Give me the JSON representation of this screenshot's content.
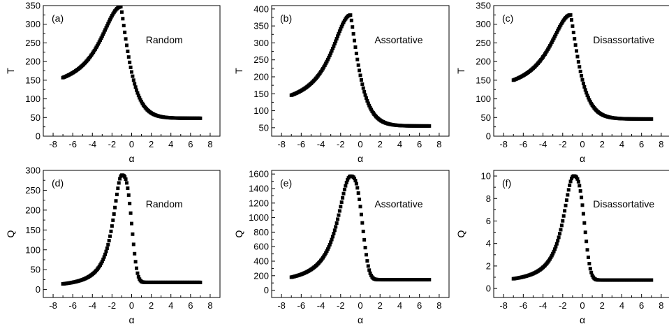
{
  "chart_data": [
    {
      "type": "scatter",
      "panel": "(a)",
      "annotation": "Random",
      "xlabel": "α",
      "ylabel": "T",
      "xlim": [
        -9,
        9
      ],
      "ylim": [
        0,
        350
      ],
      "xticks": [
        -8,
        -6,
        -4,
        -2,
        0,
        2,
        4,
        6,
        8
      ],
      "yticks": [
        0,
        50,
        100,
        150,
        200,
        250,
        300,
        350
      ],
      "grid": false,
      "curve": {
        "x_range": [
          -7,
          7
        ],
        "peak_x": -1.1,
        "peak_y": 347,
        "left_y": 120,
        "right_y": 48,
        "left_width": 2.6,
        "right_width": 0.8,
        "decay": 1.2
      }
    },
    {
      "type": "scatter",
      "panel": "(b)",
      "annotation": "Assortative",
      "xlabel": "α",
      "ylabel": "T",
      "xlim": [
        -9,
        9
      ],
      "ylim": [
        25,
        410
      ],
      "xticks": [
        -8,
        -6,
        -4,
        -2,
        0,
        2,
        4,
        6,
        8
      ],
      "yticks": [
        50,
        100,
        150,
        200,
        250,
        300,
        350,
        400
      ],
      "grid": false,
      "curve": {
        "x_range": [
          -7,
          7
        ],
        "peak_x": -1.0,
        "peak_y": 382,
        "left_y": 108,
        "right_y": 55,
        "left_width": 2.4,
        "right_width": 0.8,
        "decay": 1.2
      }
    },
    {
      "type": "scatter",
      "panel": "(c)",
      "annotation": "Disassortative",
      "xlabel": "α",
      "ylabel": "T",
      "xlim": [
        -9,
        9
      ],
      "ylim": [
        0,
        350
      ],
      "xticks": [
        -8,
        -6,
        -4,
        -2,
        0,
        2,
        4,
        6,
        8
      ],
      "yticks": [
        0,
        50,
        100,
        150,
        200,
        250,
        300,
        350
      ],
      "grid": false,
      "curve": {
        "x_range": [
          -7,
          7
        ],
        "peak_x": -1.2,
        "peak_y": 325,
        "left_y": 115,
        "right_y": 46,
        "left_width": 2.6,
        "right_width": 0.8,
        "decay": 1.2
      }
    },
    {
      "type": "scatter",
      "panel": "(d)",
      "annotation": "Random",
      "xlabel": "α",
      "ylabel": "Q",
      "xlim": [
        -9,
        9
      ],
      "ylim": [
        -20,
        300
      ],
      "xticks": [
        -8,
        -6,
        -4,
        -2,
        0,
        2,
        4,
        6,
        8
      ],
      "yticks": [
        0,
        50,
        100,
        150,
        200,
        250,
        300
      ],
      "grid": false,
      "curve": {
        "x_range": [
          -7,
          7
        ],
        "peak_x": -1.0,
        "peak_y": 288,
        "left_y": 5,
        "right_y": 18,
        "left_width": 1.1,
        "right_width": 1.0,
        "decay": 3.0
      }
    },
    {
      "type": "scatter",
      "panel": "(e)",
      "annotation": "Assortative",
      "xlabel": "α",
      "ylabel": "Q",
      "xlim": [
        -9,
        9
      ],
      "ylim": [
        -100,
        1650
      ],
      "xticks": [
        -8,
        -6,
        -4,
        -2,
        0,
        2,
        4,
        6,
        8
      ],
      "yticks": [
        0,
        200,
        400,
        600,
        800,
        1000,
        1200,
        1400,
        1600
      ],
      "grid": false,
      "curve": {
        "x_range": [
          -7,
          7
        ],
        "peak_x": -1.0,
        "peak_y": 1570,
        "left_y": 80,
        "right_y": 145,
        "left_width": 1.6,
        "right_width": 1.2,
        "decay": 3.0
      }
    },
    {
      "type": "scatter",
      "panel": "(f)",
      "annotation": "Disassortative",
      "xlabel": "α",
      "ylabel": "Q",
      "xlim": [
        -9,
        9
      ],
      "ylim": [
        -0.8,
        10.5
      ],
      "xticks": [
        -8,
        -6,
        -4,
        -2,
        0,
        2,
        4,
        6,
        8
      ],
      "yticks": [
        0,
        2,
        4,
        6,
        8,
        10
      ],
      "grid": false,
      "curve": {
        "x_range": [
          -7,
          7
        ],
        "peak_x": -0.9,
        "peak_y": 10.0,
        "left_y": 0.45,
        "right_y": 0.75,
        "left_width": 1.3,
        "right_width": 1.1,
        "decay": 3.0
      }
    }
  ]
}
